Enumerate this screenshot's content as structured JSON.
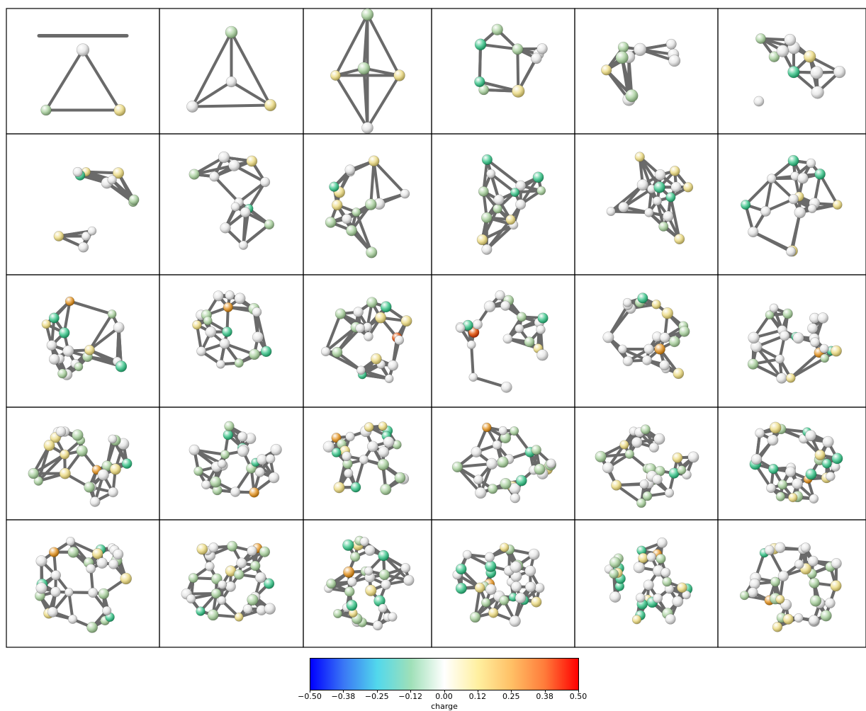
{
  "colorbar": {
    "label": "charge",
    "ticks": [
      "−0.50",
      "−0.38",
      "−0.25",
      "−0.12",
      "0.00",
      "0.12",
      "0.25",
      "0.38",
      "0.50"
    ],
    "gradient_stops": [
      "#0000ff",
      "#3a78f5",
      "#52d8ec",
      "#9fe0b8",
      "#ffffff",
      "#fff0a0",
      "#ffc066",
      "#ff7b3a",
      "#ff0000"
    ]
  },
  "atom_colors": {
    "white": "#e9e9e9",
    "pale_green": "#b9d9b0",
    "green": "#5fd0a0",
    "yellow": "#efe199",
    "orange": "#e9a84c",
    "red_orange": "#e66b2b"
  },
  "bond_color": "#6a6a6a",
  "grid": {
    "rows": 5,
    "cols": 6,
    "cluster_count": 30
  }
}
